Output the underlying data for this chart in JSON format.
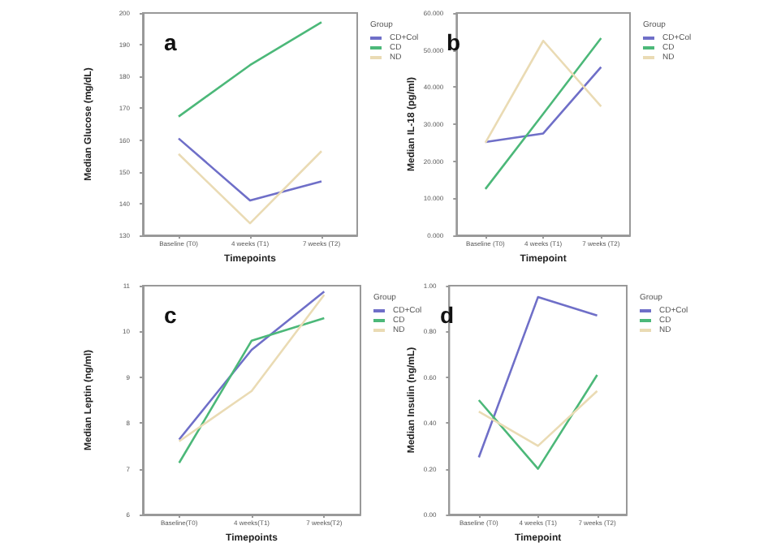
{
  "chart_data": [
    {
      "type": "line",
      "title": "a",
      "xlabel": "Timepoints",
      "ylabel": "Median Glucose (mg/dL)",
      "legend_title": "Group",
      "legend": "top right",
      "grid": false,
      "marker": "none",
      "categories": [
        "Baseline (T0)",
        "4 weeks (T1)",
        "7 weeks (T2)"
      ],
      "ylim": [
        130,
        200
      ],
      "yticks": [
        130,
        140,
        150,
        160,
        170,
        180,
        190,
        200
      ],
      "series": [
        {
          "name": "CD+Col",
          "color": "#6f6fc8",
          "values": [
            160.5,
            141,
            147
          ]
        },
        {
          "name": "CD",
          "color": "#4cb879",
          "values": [
            167.4,
            183.6,
            197.1
          ]
        },
        {
          "name": "ND",
          "color": "#eadbb4",
          "values": [
            155.6,
            133.8,
            156.5
          ]
        }
      ]
    },
    {
      "type": "line",
      "title": "b",
      "xlabel": "Timepoint",
      "ylabel": "Median IL-18 (pg/ml)",
      "legend_title": "Group",
      "legend": "top right",
      "grid": false,
      "marker": "none",
      "categories": [
        "Baseline (T0)",
        "4 weeks (T1)",
        "7 weeks (T2)"
      ],
      "ylim": [
        0,
        60
      ],
      "yticks": [
        {
          "value": 0,
          "label": "0.000"
        },
        {
          "value": 10,
          "label": "10.000"
        },
        {
          "value": 20,
          "label": "20.000"
        },
        {
          "value": 30,
          "label": "30.000"
        },
        {
          "value": 40,
          "label": "40.000"
        },
        {
          "value": 50,
          "label": "50.000"
        },
        {
          "value": 60,
          "label": "60.000"
        }
      ],
      "series": [
        {
          "name": "CD+Col",
          "color": "#6f6fc8",
          "values": [
            25.2,
            27.5,
            45.4
          ]
        },
        {
          "name": "CD",
          "color": "#4cb879",
          "values": [
            12.5,
            32.8,
            53.2
          ]
        },
        {
          "name": "ND",
          "color": "#eadbb4",
          "values": [
            25,
            52.5,
            34.8
          ]
        }
      ]
    },
    {
      "type": "line",
      "title": "c",
      "xlabel": "Timepoints",
      "ylabel": "Median Leptin (ng/ml)",
      "legend_title": "Group",
      "legend": "top right",
      "grid": false,
      "marker": "none",
      "categories": [
        "Baseline(T0)",
        "4 weeks(T1)",
        "7 weeks(T2)"
      ],
      "ylim": [
        6,
        11
      ],
      "yticks": [
        6,
        7,
        8,
        9,
        10,
        11
      ],
      "series": [
        {
          "name": "CD+Col",
          "color": "#6f6fc8",
          "values": [
            7.64,
            9.6,
            10.87
          ]
        },
        {
          "name": "CD",
          "color": "#4cb879",
          "values": [
            7.13,
            9.8,
            10.29
          ]
        },
        {
          "name": "ND",
          "color": "#eadbb4",
          "values": [
            7.6,
            8.7,
            10.8
          ]
        }
      ]
    },
    {
      "type": "line",
      "title": "d",
      "xlabel": "Timepoint",
      "ylabel": "Median Insulin (ng/mL)",
      "legend_title": "Group",
      "legend": "top right",
      "grid": false,
      "marker": "none",
      "categories": [
        "Baseline (T0)",
        "4 weeks (T1)",
        "7 weeks (T2)"
      ],
      "ylim": [
        0,
        1
      ],
      "yticks": [
        {
          "value": 0,
          "label": "0.00"
        },
        {
          "value": 0.2,
          "label": "0.20"
        },
        {
          "value": 0.4,
          "label": "0.40"
        },
        {
          "value": 0.6,
          "label": "0.60"
        },
        {
          "value": 0.8,
          "label": "0.80"
        },
        {
          "value": 1,
          "label": "1.00"
        }
      ],
      "series": [
        {
          "name": "CD+Col",
          "color": "#6f6fc8",
          "values": [
            0.25,
            0.95,
            0.87
          ]
        },
        {
          "name": "CD",
          "color": "#4cb879",
          "values": [
            0.5,
            0.2,
            0.61
          ]
        },
        {
          "name": "ND",
          "color": "#eadbb4",
          "values": [
            0.45,
            0.3,
            0.54
          ]
        }
      ]
    }
  ]
}
